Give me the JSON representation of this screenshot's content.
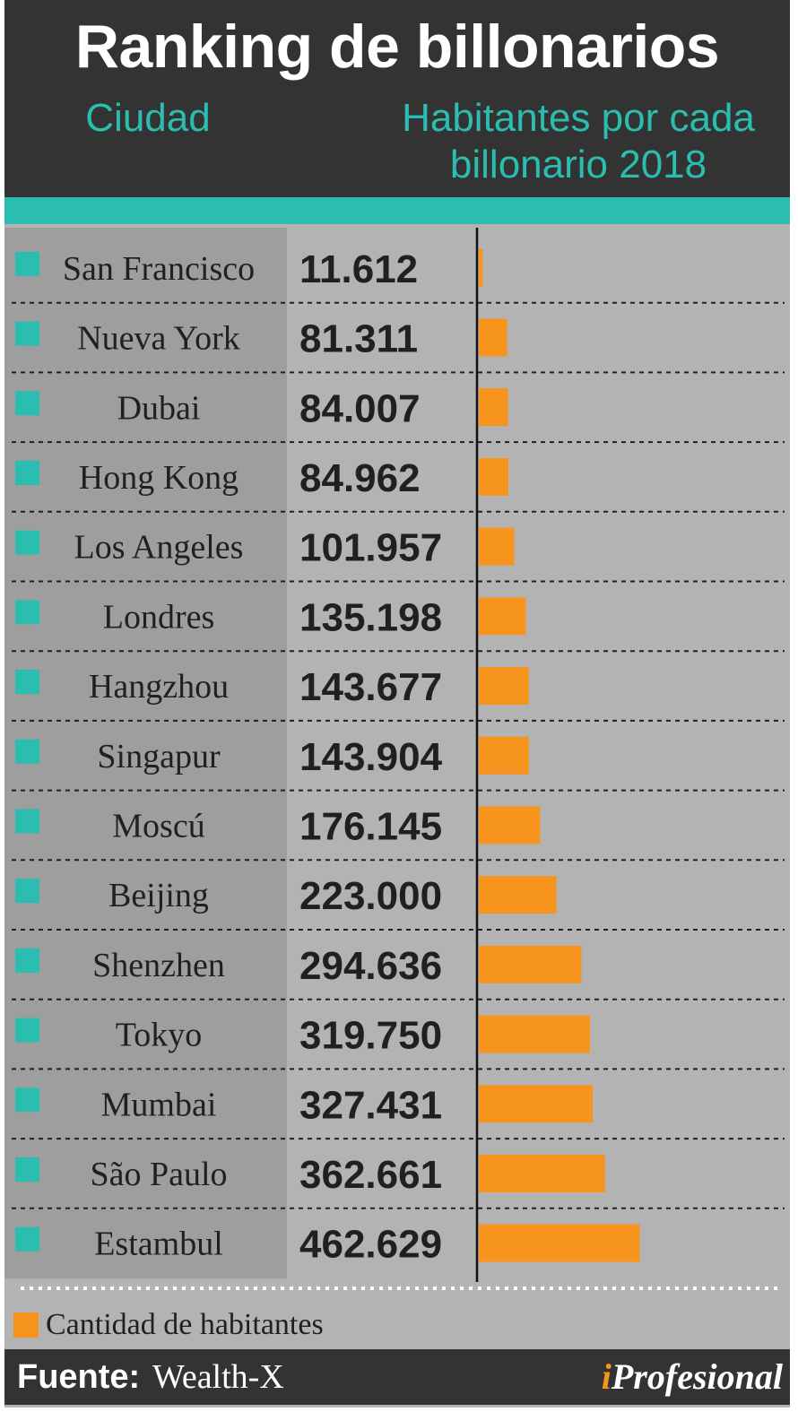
{
  "header": {
    "title": "Ranking de billonarios",
    "col_city": "Ciudad",
    "col_value": "Habitantes por cada billonario 2018"
  },
  "legend": {
    "label": "Cantidad de habitantes"
  },
  "footer": {
    "source_key": "Fuente:",
    "source_value": "Wealth-X",
    "brand_i": "i",
    "brand_rest": "Profesional"
  },
  "colors": {
    "header_bg": "#333333",
    "accent_teal": "#2bbdb0",
    "bar_orange": "#f7941d",
    "panel_gray": "#b3b3b3",
    "city_col_gray": "#9e9e9e"
  },
  "chart_data": {
    "type": "bar",
    "orientation": "horizontal",
    "title": "Ranking de billonarios",
    "categories": [
      "San Francisco",
      "Nueva York",
      "Dubai",
      "Hong Kong",
      "Los Angeles",
      "Londres",
      "Hangzhou",
      "Singapur",
      "Moscú",
      "Beijing",
      "Shenzhen",
      "Tokyo",
      "Mumbai",
      "São Paulo",
      "Estambul"
    ],
    "values": [
      11612,
      81311,
      84007,
      84962,
      101957,
      135198,
      143677,
      143904,
      176145,
      223000,
      294636,
      319750,
      327431,
      362661,
      462629
    ],
    "value_labels": [
      "11.612",
      "81.311",
      "84.007",
      "84.962",
      "101.957",
      "135.198",
      "143.677",
      "143.904",
      "176.145",
      "223.000",
      "294.636",
      "319.750",
      "327.431",
      "362.661",
      "462.629"
    ],
    "series": [
      {
        "name": "Cantidad de habitantes",
        "values": [
          11612,
          81311,
          84007,
          84962,
          101957,
          135198,
          143677,
          143904,
          176145,
          223000,
          294636,
          319750,
          327431,
          362661,
          462629
        ]
      }
    ]
  }
}
